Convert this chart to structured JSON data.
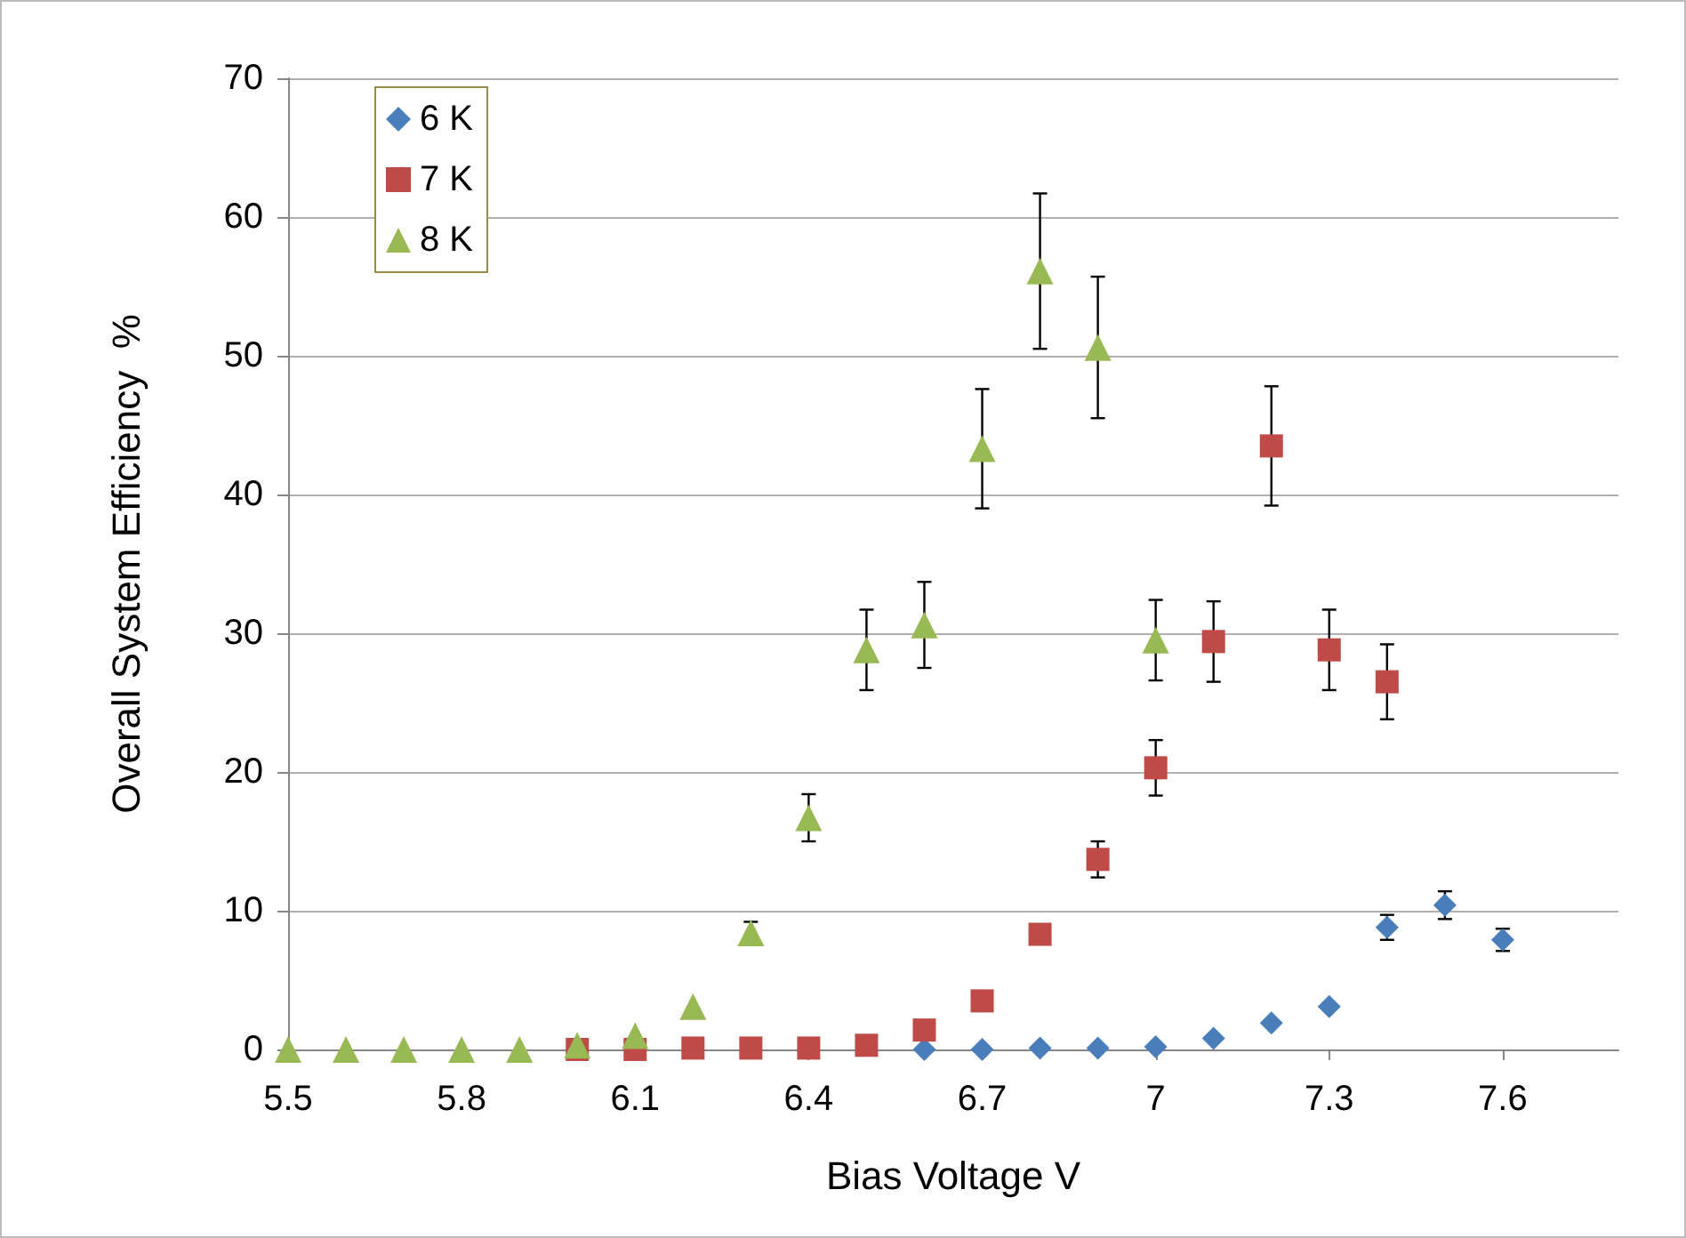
{
  "chart_data": {
    "type": "scatter",
    "xlabel": "Bias Voltage V",
    "ylabel": "Overall System Efficiency  %",
    "xlim": [
      5.5,
      7.8
    ],
    "xticks": [
      5.5,
      5.8,
      6.1,
      6.4,
      6.7,
      7,
      7.3,
      7.6
    ],
    "ylim": [
      0,
      70
    ],
    "yticks": [
      0,
      10,
      20,
      30,
      40,
      50,
      60,
      70
    ],
    "grid": "y",
    "legend": "top left",
    "series": [
      {
        "name": "6 K",
        "color": "#4a7ebb",
        "marker": "diamond",
        "x": [
          6.6,
          6.7,
          6.8,
          6.9,
          7.0,
          7.1,
          7.2,
          7.3,
          7.4,
          7.5,
          7.6
        ],
        "values": [
          0,
          0,
          0.1,
          0.1,
          0.2,
          0.8,
          1.9,
          3.1,
          8.8,
          10.4,
          7.9
        ],
        "errors": [
          null,
          null,
          null,
          null,
          null,
          null,
          null,
          null,
          0.9,
          1.0,
          0.8
        ]
      },
      {
        "name": "7 K",
        "color": "#be4b48",
        "marker": "square",
        "x": [
          6.0,
          6.1,
          6.2,
          6.3,
          6.4,
          6.5,
          6.6,
          6.7,
          6.8,
          6.9,
          7.0,
          7.1,
          7.2,
          7.3,
          7.4
        ],
        "values": [
          0,
          0,
          0.1,
          0.1,
          0.1,
          0.3,
          1.4,
          3.5,
          8.3,
          13.7,
          20.3,
          29.4,
          43.5,
          28.8,
          26.5
        ],
        "errors": [
          null,
          null,
          null,
          null,
          null,
          null,
          null,
          null,
          null,
          1.3,
          2.0,
          2.9,
          4.3,
          2.9,
          2.7
        ]
      },
      {
        "name": "8 K",
        "color": "#98b954",
        "marker": "triangle",
        "x": [
          5.5,
          5.6,
          5.7,
          5.8,
          5.9,
          6.0,
          6.1,
          6.2,
          6.3,
          6.4,
          6.5,
          6.6,
          6.7,
          6.8,
          6.9,
          7.0
        ],
        "values": [
          0,
          0,
          0,
          0,
          0,
          0.3,
          1.0,
          3.1,
          8.4,
          16.7,
          28.8,
          30.6,
          43.3,
          56.1,
          50.6,
          29.5
        ],
        "errors": [
          null,
          null,
          null,
          null,
          null,
          null,
          null,
          null,
          0.8,
          1.7,
          2.9,
          3.1,
          4.3,
          5.6,
          5.1,
          2.9
        ]
      }
    ]
  }
}
